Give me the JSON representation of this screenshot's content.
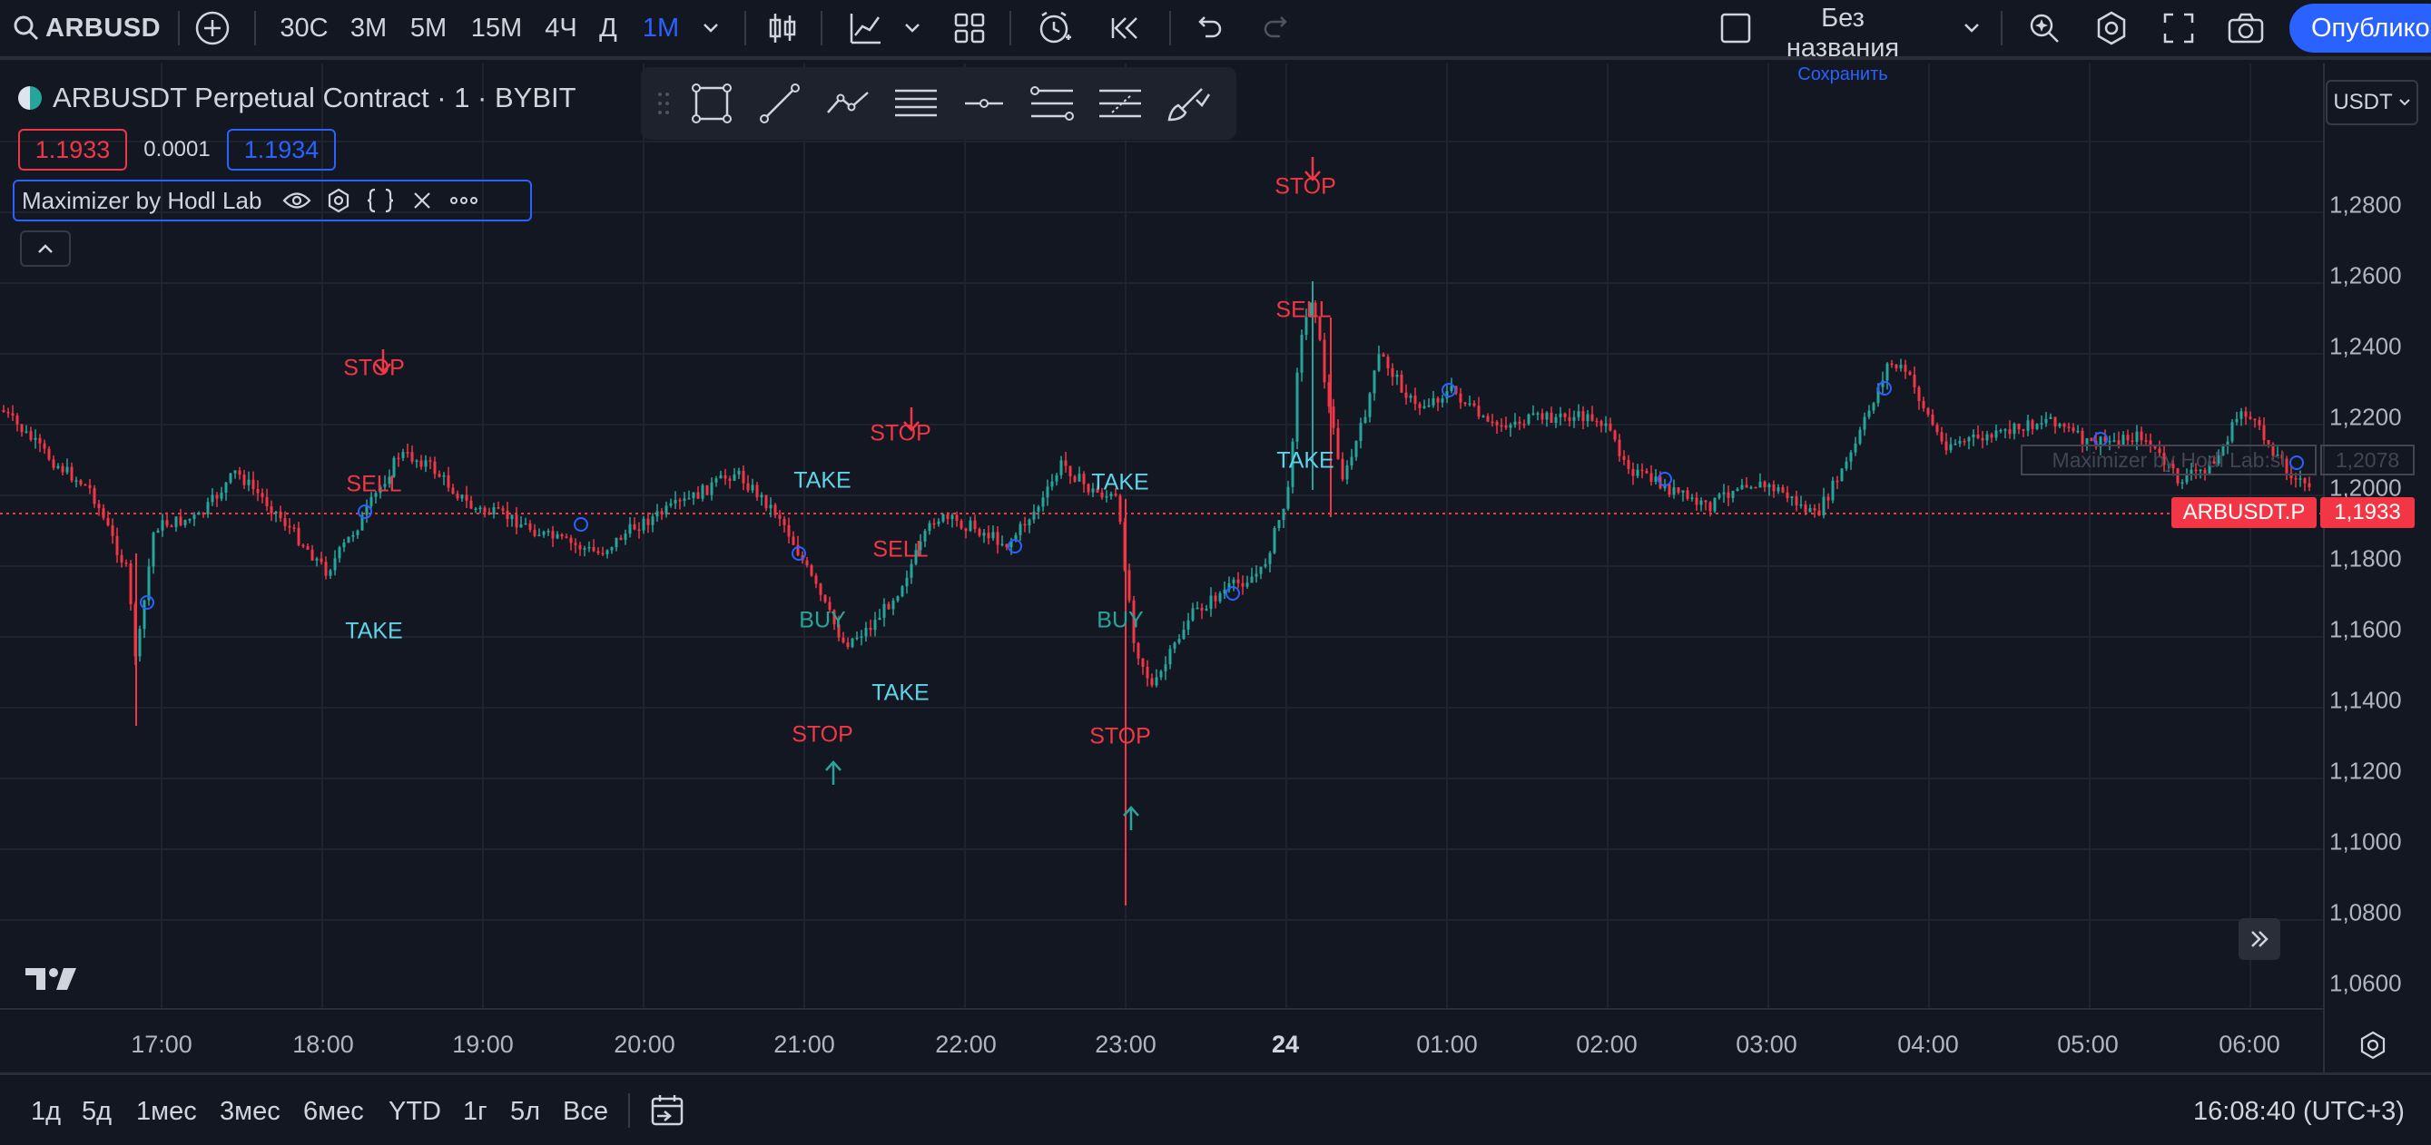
{
  "toolbar": {
    "symbol": "ARBUSD",
    "intervals": [
      "30С",
      "3М",
      "5М",
      "15М",
      "4Ч",
      "Д",
      "1М"
    ],
    "active_interval": "1М",
    "layout_name": "Без названия",
    "layout_save": "Сохранить",
    "publish": "Опублико"
  },
  "legend": {
    "title": "ARBUSDT Perpetual Contract · 1 · BYBIT",
    "bid": "1.1933",
    "spread": "0.0001",
    "ask": "1.1934",
    "indicator": "Maximizer by Hodl Lab"
  },
  "currency": "USDT",
  "price_axis": {
    "ticks": [
      "1,2800",
      "1,2600",
      "1,2400",
      "1,2200",
      "1,2000",
      "1,1800",
      "1,1600",
      "1,1400",
      "1,1200",
      "1,1000",
      "1,0800",
      "1,0600"
    ],
    "last_symbol": "ARBUSDT.P",
    "last_value": "1,1933",
    "indicator_label": "Maximizer by Hodl Lab:sl",
    "indicator_value": "1,2078"
  },
  "time_axis": {
    "ticks": [
      "17:00",
      "18:00",
      "19:00",
      "20:00",
      "21:00",
      "22:00",
      "23:00",
      "24",
      "01:00",
      "02:00",
      "03:00",
      "04:00",
      "05:00",
      "06:00"
    ]
  },
  "signals": [
    {
      "type": "stop",
      "text": "STOP"
    },
    {
      "type": "sell",
      "text": "SELL"
    },
    {
      "type": "take",
      "text": "TAKE"
    },
    {
      "type": "take",
      "text": "TAKE"
    },
    {
      "type": "buy",
      "text": "BUY"
    },
    {
      "type": "stop",
      "text": "STOP"
    },
    {
      "type": "stop",
      "text": "STOP"
    },
    {
      "type": "sell",
      "text": "SELL"
    },
    {
      "type": "take",
      "text": "TAKE"
    },
    {
      "type": "take",
      "text": "TAKE"
    },
    {
      "type": "buy",
      "text": "BUY"
    },
    {
      "type": "stop",
      "text": "STOP"
    },
    {
      "type": "stop",
      "text": "STOP"
    },
    {
      "type": "sell",
      "text": "SELL"
    },
    {
      "type": "take",
      "text": "TAKE"
    }
  ],
  "bottom": {
    "ranges": [
      "1д",
      "5д",
      "1мес",
      "3мес",
      "6мес",
      "YTD",
      "1г",
      "5л",
      "Все"
    ],
    "clock": "16:08:40 (UTC+3)"
  },
  "colors": {
    "background": "#131722",
    "up": "#26a69a",
    "down": "#f23645",
    "accent": "#2962ff"
  }
}
